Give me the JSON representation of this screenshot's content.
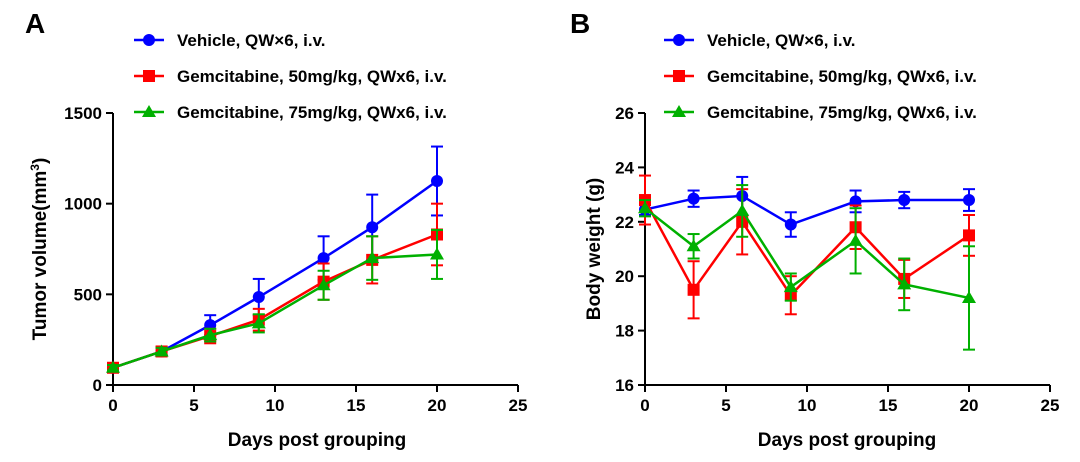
{
  "chart_data": [
    {
      "type": "line",
      "panel_label": "A",
      "xlabel": "Days post grouping",
      "ylabel": "Tumor volume(mm",
      "ylabel_sup": "3",
      "ylabel_close": ")",
      "xlim": [
        0,
        25
      ],
      "ylim": [
        0,
        1500
      ],
      "xticks": [
        "0",
        "5",
        "10",
        "15",
        "20",
        "25"
      ],
      "xtick_values": [
        0,
        5,
        10,
        15,
        20,
        25
      ],
      "yticks": [
        "0",
        "500",
        "1000",
        "1500"
      ],
      "ytick_values": [
        0,
        500,
        1000,
        1500
      ],
      "grid": false,
      "legend_position": "top-left",
      "series": [
        {
          "name": "Vehicle, QW×6, i.v.",
          "color": "#0000ff",
          "marker": "circle",
          "x": [
            0,
            3,
            6,
            9,
            13,
            16,
            20
          ],
          "y": [
            95,
            185,
            330,
            485,
            700,
            870,
            1125
          ],
          "err": [
            15,
            25,
            55,
            100,
            120,
            180,
            190
          ]
        },
        {
          "name": "Gemcitabine, 50mg/kg, QWx6, i.v.",
          "color": "#ff0000",
          "marker": "square",
          "x": [
            0,
            3,
            6,
            9,
            13,
            16,
            20
          ],
          "y": [
            95,
            185,
            270,
            360,
            570,
            690,
            830
          ],
          "err": [
            15,
            20,
            40,
            60,
            100,
            130,
            170
          ]
        },
        {
          "name": "Gemcitabine, 75mg/kg, QWx6, i.v.",
          "color": "#00b000",
          "marker": "triangle",
          "x": [
            0,
            3,
            6,
            9,
            13,
            16,
            20
          ],
          "y": [
            95,
            185,
            275,
            340,
            550,
            700,
            720
          ],
          "err": [
            15,
            20,
            35,
            50,
            80,
            120,
            135
          ]
        }
      ]
    },
    {
      "type": "line",
      "panel_label": "B",
      "xlabel": "Days post grouping",
      "ylabel": "Body weight (g)",
      "xlim": [
        0,
        25
      ],
      "ylim": [
        16,
        26
      ],
      "xticks": [
        "0",
        "5",
        "10",
        "15",
        "20",
        "25"
      ],
      "xtick_values": [
        0,
        5,
        10,
        15,
        20,
        25
      ],
      "yticks": [
        "16",
        "18",
        "20",
        "22",
        "24",
        "26"
      ],
      "ytick_values": [
        16,
        18,
        20,
        22,
        24,
        26
      ],
      "grid": false,
      "legend_position": "top",
      "series": [
        {
          "name": "Vehicle, QW×6, i.v.",
          "color": "#0000ff",
          "marker": "circle",
          "x": [
            0,
            3,
            6,
            9,
            13,
            16,
            20
          ],
          "y": [
            22.45,
            22.85,
            22.95,
            21.9,
            22.75,
            22.8,
            22.8
          ],
          "err": [
            0.2,
            0.3,
            0.7,
            0.45,
            0.4,
            0.3,
            0.4
          ]
        },
        {
          "name": "Gemcitabine, 50mg/kg, QWx6, i.v.",
          "color": "#ff0000",
          "marker": "square",
          "x": [
            0,
            3,
            6,
            9,
            13,
            16,
            20
          ],
          "y": [
            22.8,
            19.5,
            22.0,
            19.3,
            21.8,
            19.9,
            21.5
          ],
          "err": [
            0.9,
            1.05,
            1.2,
            0.7,
            0.8,
            0.7,
            0.75
          ]
        },
        {
          "name": "Gemcitabine, 75mg/kg, QWx6, i.v.",
          "color": "#00b000",
          "marker": "triangle",
          "x": [
            0,
            3,
            6,
            9,
            13,
            16,
            20
          ],
          "y": [
            22.5,
            21.1,
            22.4,
            19.6,
            21.3,
            19.7,
            19.2
          ],
          "err": [
            0.3,
            0.45,
            0.95,
            0.5,
            1.2,
            0.95,
            1.9
          ]
        }
      ]
    }
  ]
}
